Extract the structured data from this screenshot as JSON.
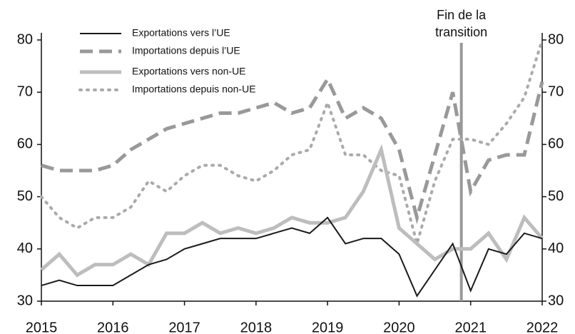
{
  "chart_data": {
    "type": "line",
    "annotation": {
      "lines": [
        "Fin de la",
        "transition"
      ],
      "x": 2020.87,
      "color": "#999999"
    },
    "x": [
      2015,
      2015.25,
      2015.5,
      2015.75,
      2016,
      2016.25,
      2016.5,
      2016.75,
      2017,
      2017.25,
      2017.5,
      2017.75,
      2018,
      2018.25,
      2018.5,
      2018.75,
      2019,
      2019.25,
      2019.5,
      2019.75,
      2020,
      2020.25,
      2020.5,
      2020.75,
      2021,
      2021.25,
      2021.5,
      2021.75,
      2022
    ],
    "series": [
      {
        "name": "Exportations vers l’UE",
        "color": "#1a1a1a",
        "style": "solid",
        "width": 2,
        "values": [
          33,
          34,
          33,
          33,
          33,
          35,
          37,
          38,
          40,
          41,
          42,
          42,
          42,
          43,
          44,
          43,
          46,
          41,
          42,
          42,
          39,
          31,
          36,
          41,
          32,
          40,
          39,
          43,
          42
        ]
      },
      {
        "name": "Importations depuis l’UE",
        "color": "#999999",
        "style": "dashed",
        "width": 5,
        "values": [
          56,
          55,
          55,
          55,
          56,
          59,
          61,
          63,
          64,
          65,
          66,
          66,
          67,
          68,
          66,
          67,
          72.5,
          65,
          67,
          65,
          59,
          46,
          58,
          70,
          51,
          57,
          58,
          58,
          72
        ]
      },
      {
        "name": "Exportations vers non-UE",
        "color": "#bdbdbd",
        "style": "solid",
        "width": 5,
        "values": [
          36,
          39,
          35,
          37,
          37,
          39,
          37,
          43,
          43,
          45,
          43,
          44,
          43,
          44,
          46,
          45,
          45,
          46,
          51,
          59,
          44,
          41,
          38,
          40,
          40,
          43,
          38,
          46,
          42
        ]
      },
      {
        "name": "Importations depuis non-UE",
        "color": "#aaaaaa",
        "style": "dotted",
        "width": 4,
        "values": [
          50,
          46,
          44,
          46,
          46,
          48,
          53,
          51,
          54,
          56,
          56,
          54,
          53,
          55,
          58,
          59,
          68,
          58,
          58,
          55,
          54,
          41,
          53,
          61,
          61,
          60,
          64,
          69,
          80
        ]
      }
    ],
    "xlim": [
      2015,
      2022
    ],
    "xticks": [
      2015,
      2016,
      2017,
      2018,
      2019,
      2020,
      2021,
      2022
    ],
    "ylim": [
      30,
      80
    ],
    "yticks": [
      30,
      40,
      50,
      60,
      70,
      80
    ],
    "y2lim": [
      30,
      80
    ],
    "y2ticks": [
      30,
      40,
      50,
      60,
      70,
      80
    ]
  }
}
